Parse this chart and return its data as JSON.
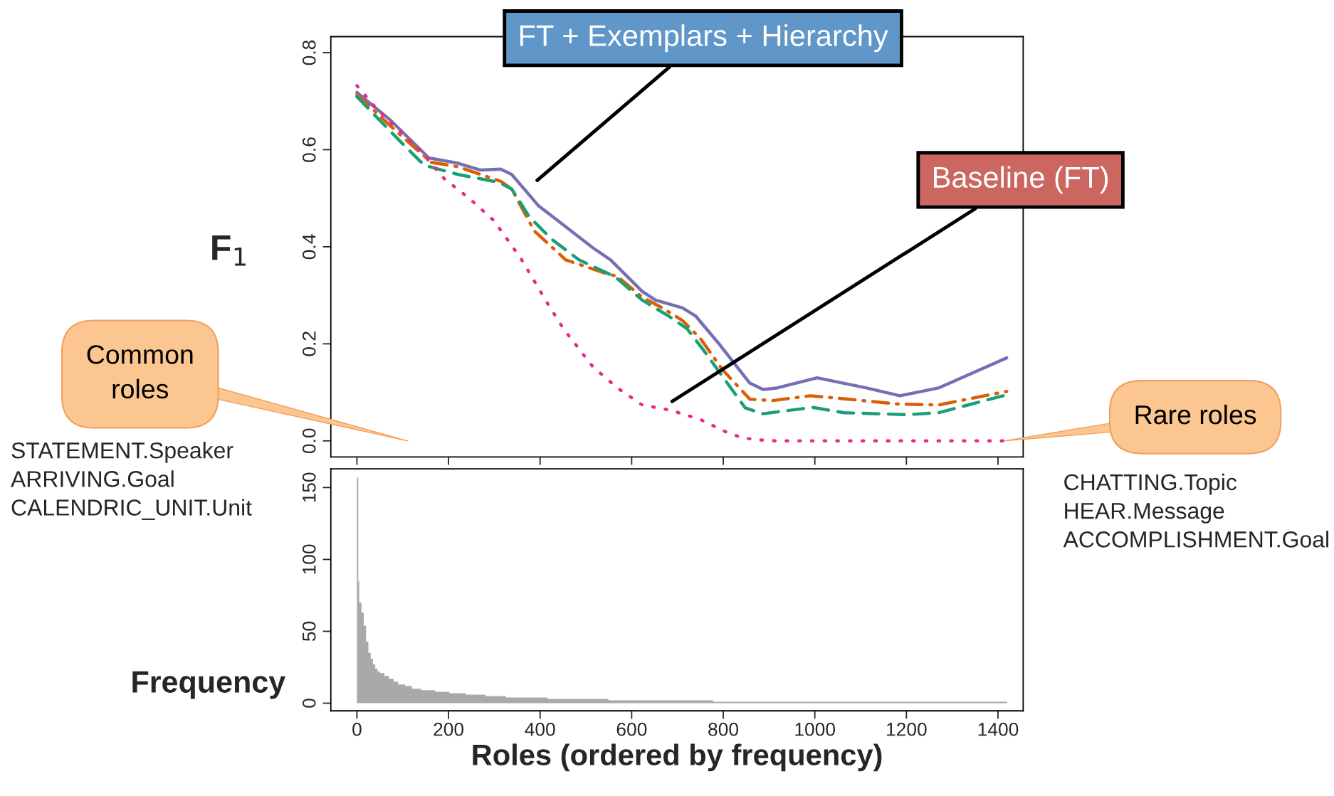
{
  "chart_data": [
    {
      "type": "line",
      "ylabel": "F$_{1}$",
      "xlim": [
        -57,
        1455
      ],
      "ylim": [
        -0.033,
        0.833
      ],
      "xticks": [
        {
          "value": 0,
          "label": null
        },
        {
          "value": 200,
          "label": null
        },
        {
          "value": 400,
          "label": null
        },
        {
          "value": 600,
          "label": null
        },
        {
          "value": 800,
          "label": null
        },
        {
          "value": 1000,
          "label": null
        },
        {
          "value": 1200,
          "label": null
        },
        {
          "value": 1400,
          "label": null
        }
      ],
      "yticks": [
        {
          "value": 0,
          "label": "0.0"
        },
        {
          "value": 0.2,
          "label": "0.2"
        },
        {
          "value": 0.4,
          "label": "0.4"
        },
        {
          "value": 0.6,
          "label": "0.6"
        },
        {
          "value": 0.8,
          "label": "0.8"
        }
      ],
      "tick_labels": "y",
      "grid": false,
      "legend": false,
      "series": [
        {
          "color": "#7570b3",
          "line_style": "solid",
          "x": [
            0,
            74,
            157,
            221,
            270,
            314,
            338,
            397,
            451,
            515,
            554,
            623,
            652,
            711,
            740,
            789,
            858,
            887,
            917,
            1005,
            1113,
            1186,
            1270,
            1419
          ],
          "values": [
            0.718,
            0.66,
            0.583,
            0.572,
            0.558,
            0.56,
            0.549,
            0.484,
            0.445,
            0.398,
            0.373,
            0.308,
            0.29,
            0.274,
            0.257,
            0.202,
            0.119,
            0.106,
            0.109,
            0.13,
            0.109,
            0.093,
            0.109,
            0.171
          ]
        },
        {
          "color": "#d95f02",
          "line_style": "dashdot",
          "x": [
            0,
            93,
            162,
            221,
            270,
            314,
            338,
            387,
            456,
            544,
            569,
            623,
            667,
            711,
            750,
            799,
            858,
            907,
            990,
            1083,
            1181,
            1270,
            1419
          ],
          "values": [
            0.713,
            0.632,
            0.574,
            0.565,
            0.549,
            0.535,
            0.519,
            0.433,
            0.373,
            0.345,
            0.339,
            0.296,
            0.274,
            0.248,
            0.211,
            0.146,
            0.086,
            0.083,
            0.093,
            0.085,
            0.076,
            0.074,
            0.102
          ]
        },
        {
          "color": "#1b9e77",
          "line_style": "dashed",
          "x": [
            0,
            103,
            147,
            221,
            309,
            338,
            377,
            426,
            485,
            564,
            623,
            681,
            721,
            760,
            799,
            848,
            887,
            995,
            1064,
            1201,
            1270,
            1419
          ],
          "values": [
            0.709,
            0.609,
            0.568,
            0.549,
            0.533,
            0.519,
            0.461,
            0.415,
            0.373,
            0.338,
            0.29,
            0.257,
            0.231,
            0.183,
            0.132,
            0.068,
            0.056,
            0.069,
            0.058,
            0.054,
            0.058,
            0.095
          ]
        },
        {
          "color": "#e7298a",
          "line_style": "dotted",
          "x": [
            0,
            44,
            132,
            191,
            245,
            299,
            358,
            412,
            451,
            515,
            569,
            623,
            686,
            750,
            809,
            843,
            878,
            917,
            1419
          ],
          "values": [
            0.732,
            0.683,
            0.605,
            0.54,
            0.5,
            0.454,
            0.376,
            0.29,
            0.231,
            0.153,
            0.109,
            0.074,
            0.063,
            0.044,
            0.017,
            0.006,
            0.002,
            0,
            0
          ]
        }
      ],
      "annotations": [
        "FT + Exemplars + Hierarchy",
        "Baseline (FT)",
        "Common\nroles",
        "Rare roles",
        "STATEMENT.Speaker\nARRIVING.Goal\nCALENDRIC_UNIT.Unit",
        "CHATTING.Topic\nHEAR.Message\nACCOMPLISHMENT.Goal"
      ]
    },
    {
      "type": "histogram",
      "xlabel": "Roles (ordered by frequency)",
      "ylabel": "Frequency",
      "color": "#a9a9a9",
      "xlim": [
        -57,
        1455
      ],
      "ylim": [
        -5.3,
        163
      ],
      "xticks": [
        0,
        200,
        400,
        600,
        800,
        1000,
        1200,
        1400
      ],
      "yticks": [
        0,
        50,
        100,
        150
      ],
      "grid": false,
      "legend": false,
      "bins": [
        0,
        3,
        5,
        10,
        15,
        20,
        25,
        30,
        35,
        40,
        45,
        50,
        60,
        70,
        80,
        90,
        105,
        120,
        140,
        171,
        202,
        238,
        281,
        325,
        416,
        549,
        778,
        1420
      ],
      "values": [
        157,
        85,
        70,
        63,
        54,
        43,
        35,
        31,
        27,
        24,
        22,
        21,
        19,
        17,
        15,
        13,
        12,
        10,
        9,
        8,
        7,
        6,
        5,
        4,
        3,
        2,
        1
      ]
    }
  ]
}
